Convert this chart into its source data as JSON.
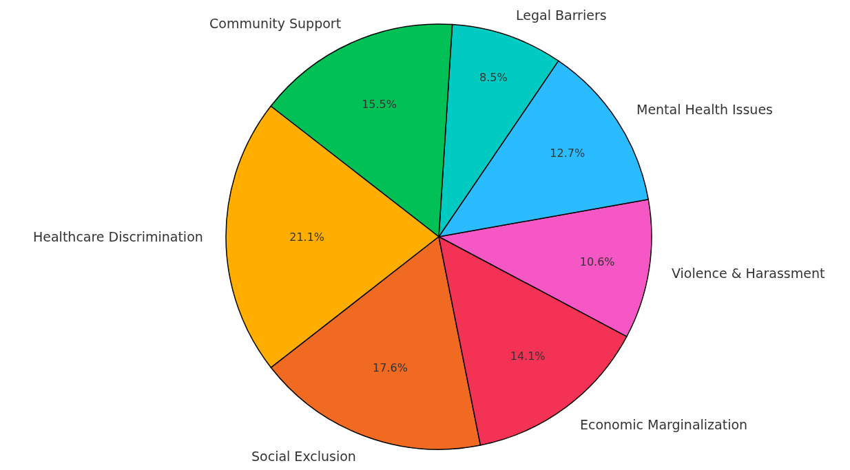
{
  "chart_data": {
    "type": "pie",
    "categories": [
      "Violence & Harassment",
      "Mental Health Issues",
      "Legal Barriers",
      "Community Support",
      "Healthcare Discrimination",
      "Social Exclusion",
      "Economic Marginalization"
    ],
    "values": [
      10.6,
      12.7,
      8.5,
      15.5,
      21.1,
      17.6,
      14.1
    ],
    "value_labels": [
      "10.6%",
      "12.7%",
      "8.5%",
      "15.5%",
      "21.1%",
      "17.6%",
      "14.1%"
    ],
    "colors": [
      "#f558c4",
      "#2bbcff",
      "#00cbc3",
      "#00c056",
      "#ffae00",
      "#f06a22",
      "#f43256"
    ],
    "legend": false
  }
}
